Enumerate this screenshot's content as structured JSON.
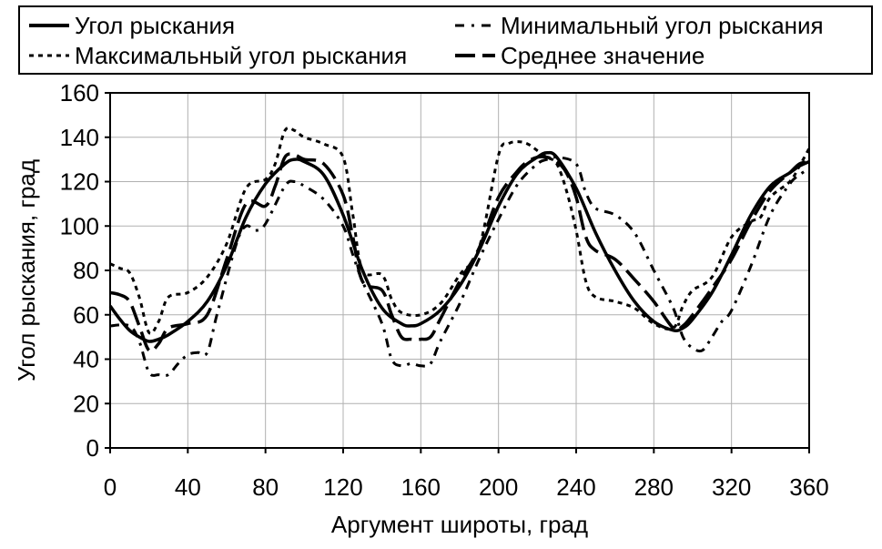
{
  "chart_data": {
    "type": "line",
    "title": "",
    "xlabel": "Аргумент широты, град",
    "ylabel": "Угол рыскания, град",
    "xlim": [
      0,
      360
    ],
    "ylim": [
      0,
      160
    ],
    "x_ticks": [
      "0",
      "40",
      "80",
      "120",
      "160",
      "200",
      "240",
      "280",
      "320",
      "360"
    ],
    "y_ticks": [
      "0",
      "20",
      "40",
      "60",
      "80",
      "100",
      "120",
      "140",
      "160"
    ],
    "grid": true,
    "legend_position": "top",
    "series": [
      {
        "name": "Угол рыскания",
        "style": "solid",
        "color": "#000000",
        "points": [
          [
            0,
            64
          ],
          [
            5,
            58
          ],
          [
            10,
            53
          ],
          [
            15,
            50
          ],
          [
            20,
            48
          ],
          [
            25,
            49
          ],
          [
            30,
            51
          ],
          [
            40,
            57
          ],
          [
            50,
            66
          ],
          [
            60,
            82
          ],
          [
            70,
            104
          ],
          [
            80,
            119
          ],
          [
            90,
            128
          ],
          [
            95,
            130
          ],
          [
            100,
            129
          ],
          [
            110,
            123
          ],
          [
            120,
            105
          ],
          [
            130,
            80
          ],
          [
            140,
            63
          ],
          [
            150,
            56
          ],
          [
            155,
            55
          ],
          [
            160,
            56
          ],
          [
            170,
            62
          ],
          [
            180,
            73
          ],
          [
            190,
            89
          ],
          [
            200,
            109
          ],
          [
            210,
            124
          ],
          [
            220,
            131
          ],
          [
            225,
            133
          ],
          [
            230,
            131
          ],
          [
            240,
            117
          ],
          [
            250,
            97
          ],
          [
            260,
            80
          ],
          [
            270,
            66
          ],
          [
            280,
            57
          ],
          [
            290,
            53
          ],
          [
            295,
            54
          ],
          [
            300,
            58
          ],
          [
            310,
            70
          ],
          [
            320,
            87
          ],
          [
            330,
            105
          ],
          [
            340,
            118
          ],
          [
            350,
            124
          ],
          [
            355,
            127
          ],
          [
            360,
            129
          ]
        ]
      },
      {
        "name": "Минимальный угол рыскания",
        "style": "dash-dot",
        "color": "#000000",
        "points": [
          [
            0,
            55
          ],
          [
            10,
            55
          ],
          [
            15,
            48
          ],
          [
            20,
            34
          ],
          [
            25,
            33
          ],
          [
            30,
            33
          ],
          [
            35,
            38
          ],
          [
            40,
            42
          ],
          [
            45,
            43
          ],
          [
            50,
            43
          ],
          [
            55,
            60
          ],
          [
            65,
            92
          ],
          [
            70,
            100
          ],
          [
            75,
            98
          ],
          [
            80,
            101
          ],
          [
            90,
            118
          ],
          [
            95,
            120
          ],
          [
            100,
            118
          ],
          [
            110,
            112
          ],
          [
            120,
            100
          ],
          [
            125,
            87
          ],
          [
            130,
            75
          ],
          [
            140,
            56
          ],
          [
            145,
            40
          ],
          [
            150,
            37
          ],
          [
            155,
            38
          ],
          [
            160,
            37
          ],
          [
            165,
            38
          ],
          [
            170,
            48
          ],
          [
            180,
            65
          ],
          [
            190,
            85
          ],
          [
            200,
            103
          ],
          [
            210,
            119
          ],
          [
            220,
            128
          ],
          [
            225,
            130
          ],
          [
            230,
            131
          ],
          [
            240,
            128
          ],
          [
            245,
            115
          ],
          [
            250,
            108
          ],
          [
            260,
            105
          ],
          [
            270,
            97
          ],
          [
            280,
            80
          ],
          [
            290,
            63
          ],
          [
            295,
            50
          ],
          [
            300,
            45
          ],
          [
            305,
            44
          ],
          [
            310,
            50
          ],
          [
            315,
            57
          ],
          [
            320,
            62
          ],
          [
            330,
            82
          ],
          [
            340,
            105
          ],
          [
            350,
            119
          ],
          [
            355,
            123
          ],
          [
            360,
            126
          ]
        ]
      },
      {
        "name": "Максимальный угол рыскания",
        "style": "dotted",
        "color": "#000000",
        "points": [
          [
            0,
            83
          ],
          [
            5,
            81
          ],
          [
            10,
            79
          ],
          [
            15,
            68
          ],
          [
            20,
            52
          ],
          [
            25,
            57
          ],
          [
            30,
            68
          ],
          [
            40,
            70
          ],
          [
            50,
            77
          ],
          [
            60,
            92
          ],
          [
            70,
            117
          ],
          [
            80,
            121
          ],
          [
            85,
            128
          ],
          [
            90,
            143
          ],
          [
            95,
            143
          ],
          [
            100,
            140
          ],
          [
            110,
            137
          ],
          [
            120,
            131
          ],
          [
            125,
            105
          ],
          [
            130,
            80
          ],
          [
            140,
            78
          ],
          [
            145,
            67
          ],
          [
            150,
            61
          ],
          [
            160,
            60
          ],
          [
            170,
            65
          ],
          [
            180,
            78
          ],
          [
            190,
            90
          ],
          [
            200,
            132
          ],
          [
            205,
            137
          ],
          [
            210,
            138
          ],
          [
            215,
            137
          ],
          [
            220,
            134
          ],
          [
            225,
            131
          ],
          [
            230,
            128
          ],
          [
            235,
            116
          ],
          [
            240,
            98
          ],
          [
            245,
            75
          ],
          [
            250,
            68
          ],
          [
            260,
            66
          ],
          [
            270,
            63
          ],
          [
            280,
            56
          ],
          [
            290,
            54
          ],
          [
            295,
            64
          ],
          [
            300,
            71
          ],
          [
            310,
            77
          ],
          [
            320,
            95
          ],
          [
            330,
            102
          ],
          [
            335,
            104
          ],
          [
            340,
            113
          ],
          [
            350,
            120
          ],
          [
            355,
            127
          ],
          [
            360,
            135
          ]
        ]
      },
      {
        "name": "Среднее значение",
        "style": "long-dash",
        "color": "#000000",
        "points": [
          [
            0,
            70
          ],
          [
            5,
            69
          ],
          [
            10,
            66
          ],
          [
            15,
            55
          ],
          [
            20,
            44
          ],
          [
            25,
            47
          ],
          [
            30,
            54
          ],
          [
            40,
            56
          ],
          [
            50,
            60
          ],
          [
            60,
            85
          ],
          [
            70,
            110
          ],
          [
            80,
            109
          ],
          [
            85,
            118
          ],
          [
            90,
            131
          ],
          [
            95,
            132
          ],
          [
            100,
            130
          ],
          [
            110,
            128
          ],
          [
            120,
            114
          ],
          [
            125,
            95
          ],
          [
            130,
            75
          ],
          [
            140,
            71
          ],
          [
            145,
            60
          ],
          [
            150,
            50
          ],
          [
            155,
            49
          ],
          [
            160,
            49
          ],
          [
            165,
            50
          ],
          [
            170,
            58
          ],
          [
            180,
            75
          ],
          [
            190,
            90
          ],
          [
            200,
            113
          ],
          [
            210,
            125
          ],
          [
            215,
            129
          ],
          [
            220,
            131
          ],
          [
            225,
            131
          ],
          [
            230,
            129
          ],
          [
            235,
            124
          ],
          [
            240,
            113
          ],
          [
            245,
            95
          ],
          [
            250,
            89
          ],
          [
            260,
            85
          ],
          [
            270,
            76
          ],
          [
            280,
            66
          ],
          [
            290,
            54
          ],
          [
            295,
            55
          ],
          [
            300,
            60
          ],
          [
            310,
            72
          ],
          [
            320,
            85
          ],
          [
            330,
            102
          ],
          [
            340,
            116
          ],
          [
            350,
            124
          ],
          [
            355,
            128
          ],
          [
            360,
            129
          ]
        ]
      }
    ]
  }
}
